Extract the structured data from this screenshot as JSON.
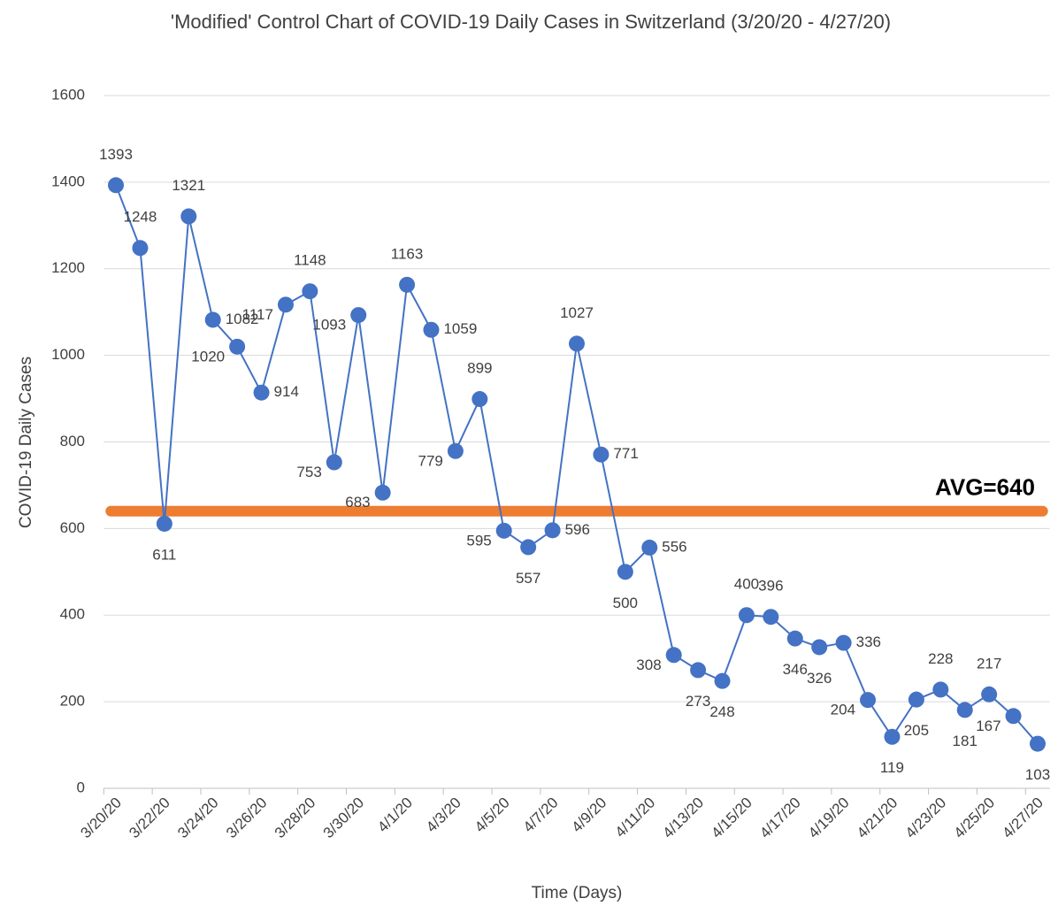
{
  "chart_data": {
    "type": "line",
    "title": "'Modified' Control Chart of COVID-19 Daily Cases in Switzerland (3/20/20 - 4/27/20)",
    "y_label": "COVID-19 Daily Cases",
    "x_label": "Time (Days)",
    "categories": [
      "3/20/20",
      null,
      "3/22/20",
      null,
      "3/24/20",
      null,
      "3/26/20",
      null,
      "3/28/20",
      null,
      "3/30/20",
      null,
      "4/1/20",
      null,
      "4/3/20",
      null,
      "4/5/20",
      null,
      "4/7/20",
      null,
      "4/9/20",
      null,
      "4/11/20",
      null,
      "4/13/20",
      null,
      "4/15/20",
      null,
      "4/17/20",
      null,
      "4/19/20",
      null,
      "4/21/20",
      null,
      "4/23/20",
      null,
      "4/25/20",
      null,
      "4/27/20"
    ],
    "series": [
      {
        "name": "Daily Cases",
        "color": "#4472c4",
        "values": [
          1393,
          1248,
          611,
          1321,
          1082,
          1020,
          914,
          1117,
          1148,
          753,
          1093,
          683,
          1163,
          1059,
          779,
          899,
          595,
          557,
          596,
          1027,
          771,
          500,
          556,
          308,
          273,
          248,
          400,
          396,
          346,
          326,
          336,
          204,
          119,
          205,
          228,
          181,
          217,
          167,
          103
        ]
      }
    ],
    "reference_line": {
      "value": 640,
      "label": "AVG=640",
      "color": "#ed7d31"
    },
    "ylim": [
      0,
      1600
    ],
    "yticks": [
      0,
      200,
      400,
      600,
      800,
      1000,
      1200,
      1400,
      1600
    ],
    "grid": true
  }
}
